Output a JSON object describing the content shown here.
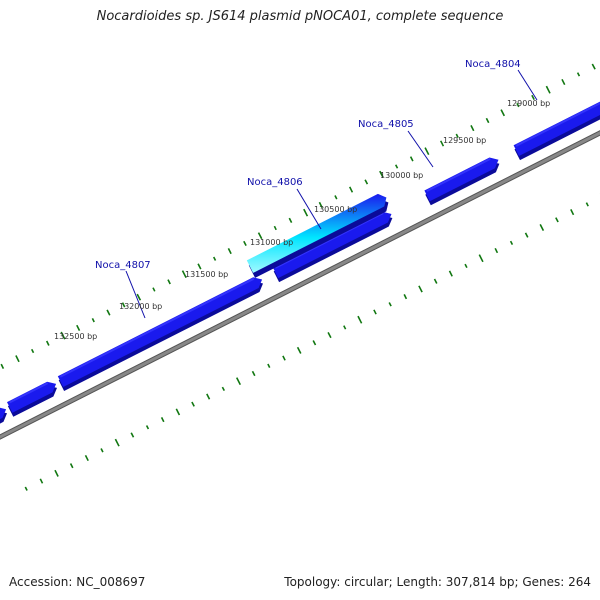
{
  "title": "Nocardioides sp. JS614 plasmid pNOCA01, complete sequence",
  "footer": {
    "accession": "Accession: NC_008697",
    "stats": "Topology: circular; Length: 307,814 bp; Genes: 264"
  },
  "colors": {
    "gene_fill": "#1a1aee",
    "gene_dark": "#0b0b99",
    "gene_light": "#3a3aff",
    "selected_gene": "#00e5ff",
    "backbone": "#888888",
    "backbone_dark": "#555555",
    "gc_tick": "#117711",
    "gene_label": "#1010aa",
    "bp_label": "#333333"
  },
  "bp_labels": [
    "129000 bp",
    "129500 bp",
    "130000 bp",
    "130500 bp",
    "131000 bp",
    "131500 bp",
    "132000 bp",
    "132500 bp"
  ],
  "gene_labels": [
    "Noca_4804",
    "Noca_4805",
    "Noca_4806",
    "Noca_4807"
  ]
}
